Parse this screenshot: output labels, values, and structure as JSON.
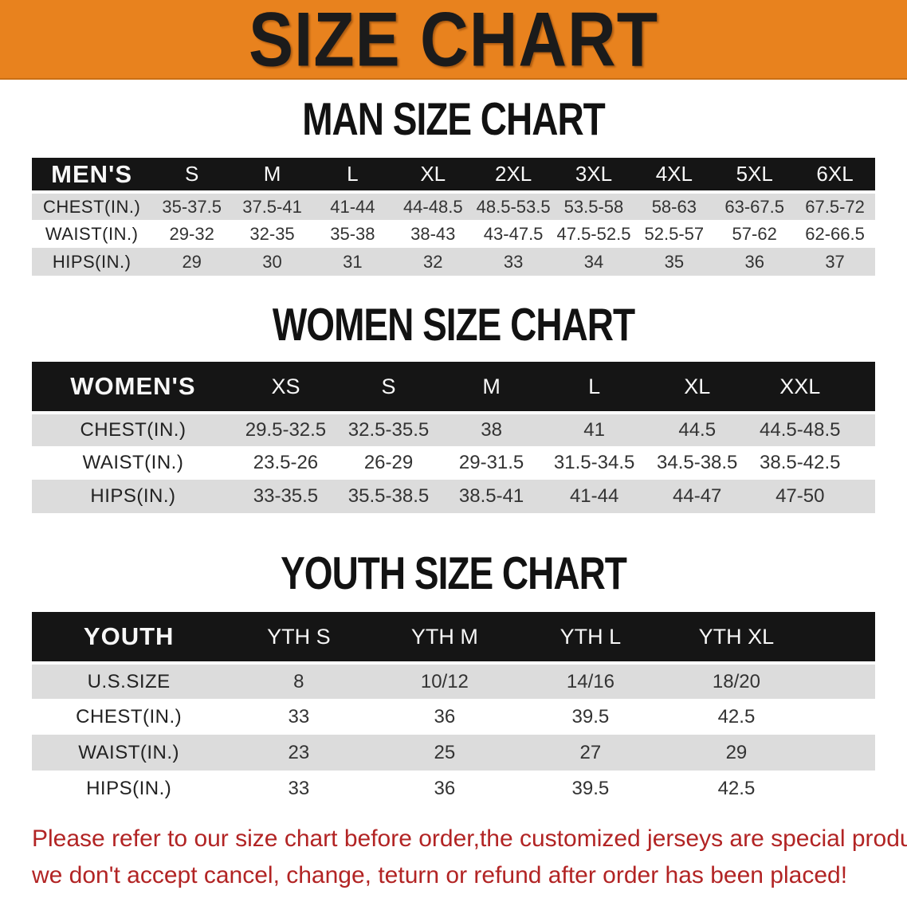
{
  "banner": {
    "title": "SIZE CHART",
    "bg_color": "#E8821E",
    "text_color": "#1b1b1b"
  },
  "colors": {
    "header_band": "#151515",
    "stripe_gray": "#DCDCDC",
    "note_red": "#B22424"
  },
  "sections": [
    {
      "heading": "MAN SIZE CHART",
      "table": {
        "header_label": "MEN'S",
        "columns": [
          "S",
          "M",
          "L",
          "XL",
          "2XL",
          "3XL",
          "4XL",
          "5XL",
          "6XL"
        ],
        "rows": [
          {
            "label": "CHEST(IN.)",
            "values": [
              "35-37.5",
              "37.5-41",
              "41-44",
              "44-48.5",
              "48.5-53.5",
              "53.5-58",
              "58-63",
              "63-67.5",
              "67.5-72"
            ]
          },
          {
            "label": "WAIST(IN.)",
            "values": [
              "29-32",
              "32-35",
              "35-38",
              "38-43",
              "43-47.5",
              "47.5-52.5",
              "52.5-57",
              "57-62",
              "62-66.5"
            ]
          },
          {
            "label": "HIPS(IN.)",
            "values": [
              "29",
              "30",
              "31",
              "32",
              "33",
              "34",
              "35",
              "36",
              "37"
            ]
          }
        ]
      }
    },
    {
      "heading": "WOMEN SIZE CHART",
      "table": {
        "header_label": "WOMEN'S",
        "columns": [
          "XS",
          "S",
          "M",
          "L",
          "XL",
          "XXL"
        ],
        "rows": [
          {
            "label": "CHEST(IN.)",
            "values": [
              "29.5-32.5",
              "32.5-35.5",
              "38",
              "41",
              "44.5",
              "44.5-48.5"
            ]
          },
          {
            "label": "WAIST(IN.)",
            "values": [
              "23.5-26",
              "26-29",
              "29-31.5",
              "31.5-34.5",
              "34.5-38.5",
              "38.5-42.5"
            ]
          },
          {
            "label": "HIPS(IN.)",
            "values": [
              "33-35.5",
              "35.5-38.5",
              "38.5-41",
              "41-44",
              "44-47",
              "47-50"
            ]
          }
        ]
      }
    },
    {
      "heading": "YOUTH SIZE CHART",
      "table": {
        "header_label": "YOUTH",
        "columns": [
          "YTH S",
          "YTH M",
          "YTH L",
          "YTH XL"
        ],
        "rows": [
          {
            "label": "U.S.SIZE",
            "values": [
              "8",
              "10/12",
              "14/16",
              "18/20"
            ]
          },
          {
            "label": "CHEST(IN.)",
            "values": [
              "33",
              "36",
              "39.5",
              "42.5"
            ]
          },
          {
            "label": "WAIST(IN.)",
            "values": [
              "23",
              "25",
              "27",
              "29"
            ]
          },
          {
            "label": "HIPS(IN.)",
            "values": [
              "33",
              "36",
              "39.5",
              "42.5"
            ]
          }
        ]
      }
    }
  ],
  "footer_note": {
    "line1": "Please refer to our size chart before order,the customized jerseys are special products,",
    "line2": "we don't accept cancel, change, teturn or refund after order has been placed!"
  }
}
